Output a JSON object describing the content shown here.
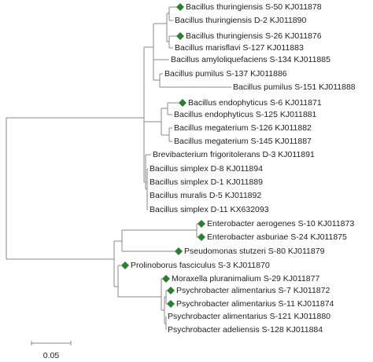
{
  "leaves": [
    "Bacillus thuringiensis S-50 KJ011878",
    "Bacillus thuringiensis D-2 KJ011890",
    "Bacillus thuringiensis S-26 KJ011876",
    "Bacillus marisflavi S-127 KJ011883",
    "Bacillus amyloliquefaciens S-134 KJ011885",
    "Bacillus pumilus S-137 KJ011886",
    "Bacillus pumilus S-151 KJ011888",
    "Bacillus endophyticus S-6 KJ011871",
    "Bacillus endophyticus S-125 KJ011881",
    "Bacillus megaterium S-126 KJ011882",
    "Bacillus megaterium S-145 KJ011887",
    "Brevibacterium frigoritolerans D-3 KJ011891",
    "Bacillus simplex D-8 KJ011894",
    "Bacillus simplex D-1 KJ011889",
    "Bacillus muralis D-5 KJ011892",
    "Bacillus simplex D-11 KX632093",
    "Enterobacter aerogenes S-10 KJ011873",
    "Enterobacter asburiae S-24 KJ011875",
    "Pseudomonas stutzeri S-80 KJ011879",
    "Prolinoborus fasciculus S-3 KJ011870",
    "Moraxella pluranimalium S-29 KJ011877",
    "Psychrobacter alimentarius S-7 KJ011872",
    "Psychrobacter alimentarius S-11 KJ011874",
    "Psychrobacter alimentarius S-121 KJ011880",
    "Psychrobacter adeliensis S-128 KJ011884"
  ],
  "scale_bar": {
    "label": "0.05"
  }
}
